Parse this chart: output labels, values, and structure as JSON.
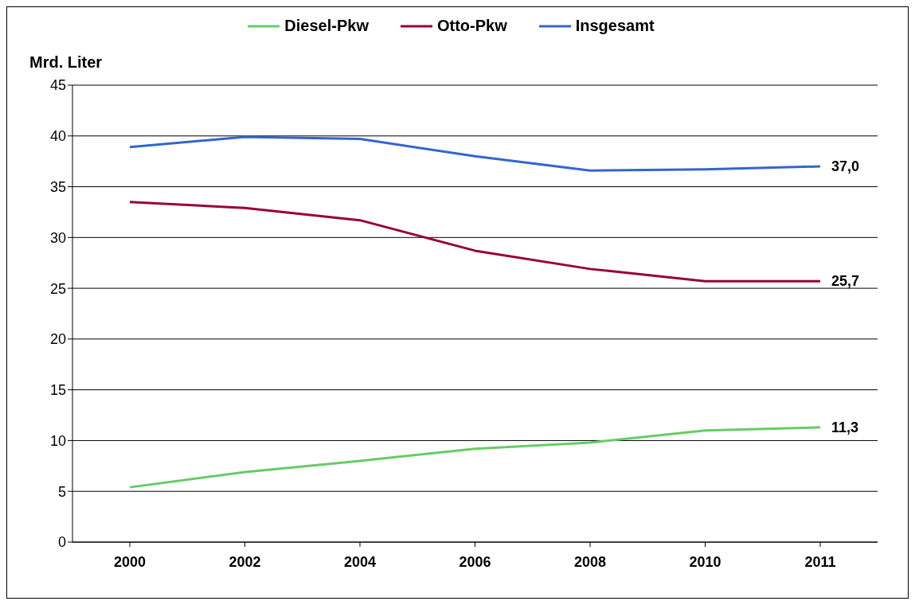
{
  "chart_data": {
    "type": "line",
    "ylabel": "Mrd. Liter",
    "categories": [
      "2000",
      "2002",
      "2004",
      "2006",
      "2008",
      "2010",
      "2011"
    ],
    "series": [
      {
        "name": "Diesel-Pkw",
        "color": "#66cc66",
        "values": [
          5.4,
          6.9,
          8.0,
          9.2,
          9.8,
          11.0,
          11.3
        ],
        "value_labels": [
          null,
          null,
          null,
          null,
          null,
          null,
          "11,3"
        ]
      },
      {
        "name": "Otto-Pkw",
        "color": "#990033",
        "values": [
          33.5,
          32.9,
          31.7,
          28.7,
          26.9,
          25.7,
          25.7
        ],
        "value_labels": [
          null,
          null,
          null,
          null,
          null,
          null,
          "25,7"
        ]
      },
      {
        "name": "Insgesamt",
        "color": "#3366cc",
        "values": [
          38.9,
          39.9,
          39.7,
          38.0,
          36.6,
          36.7,
          37.0
        ],
        "value_labels": [
          null,
          null,
          null,
          null,
          null,
          null,
          "37,0"
        ]
      }
    ],
    "ylim": [
      0,
      45
    ],
    "yticks": [
      0,
      5,
      10,
      15,
      20,
      25,
      30,
      35,
      40,
      45
    ],
    "grid": "y",
    "legend": "top",
    "marker": "none",
    "line_style": "solid"
  }
}
